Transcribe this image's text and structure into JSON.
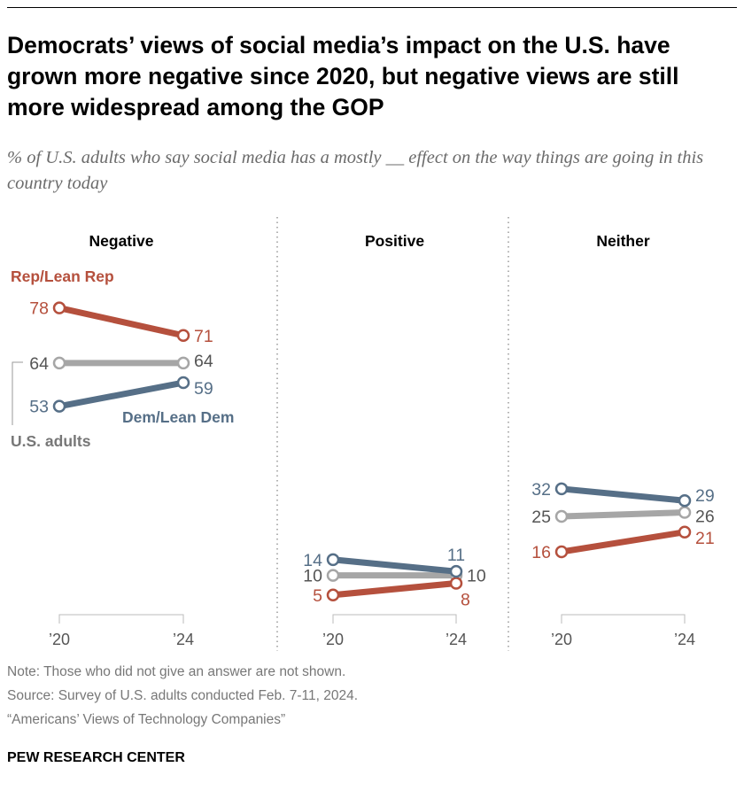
{
  "title": "Democrats’ views of social media’s impact on the U.S. have grown more negative since 2020, but negative views are still more widespread among the GOP",
  "subtitle": "% of U.S. adults who say social media has a mostly __ effect on the way things are going in this country today",
  "chart_data": {
    "type": "line",
    "x": [
      "’20",
      "’24"
    ],
    "panels": [
      {
        "title": "Negative",
        "series": [
          {
            "name": "U.S. adults",
            "values": [
              64,
              64
            ]
          },
          {
            "name": "Rep/Lean Rep",
            "values": [
              78,
              71
            ]
          },
          {
            "name": "Dem/Lean Dem",
            "values": [
              53,
              59
            ]
          }
        ]
      },
      {
        "title": "Positive",
        "series": [
          {
            "name": "U.S. adults",
            "values": [
              10,
              10
            ]
          },
          {
            "name": "Rep/Lean Rep",
            "values": [
              5,
              8
            ]
          },
          {
            "name": "Dem/Lean Dem",
            "values": [
              14,
              11
            ]
          }
        ]
      },
      {
        "title": "Neither",
        "series": [
          {
            "name": "U.S. adults",
            "values": [
              25,
              26
            ]
          },
          {
            "name": "Rep/Lean Rep",
            "values": [
              16,
              21
            ]
          },
          {
            "name": "Dem/Lean Dem",
            "values": [
              32,
              29
            ]
          }
        ]
      }
    ],
    "colors": {
      "U.S. adults": "#a6a6a6",
      "Rep/Lean Rep": "#b5503d",
      "Dem/Lean Dem": "#566f87"
    },
    "label_colors": {
      "U.S. adults": "#555555",
      "Rep/Lean Rep": "#b5503d",
      "Dem/Lean Dem": "#566f87"
    },
    "ylim": [
      0,
      100
    ],
    "grid": false
  },
  "legend": {
    "rep": "Rep/Lean Rep",
    "dem": "Dem/Lean Dem",
    "all": "U.S. adults"
  },
  "footer": {
    "note": "Note: Those who did not give an answer are not shown.",
    "source": "Source: Survey of U.S. adults conducted Feb. 7-11, 2024.",
    "report": "“Americans’ Views of Technology Companies”",
    "brand": "PEW RESEARCH CENTER"
  }
}
